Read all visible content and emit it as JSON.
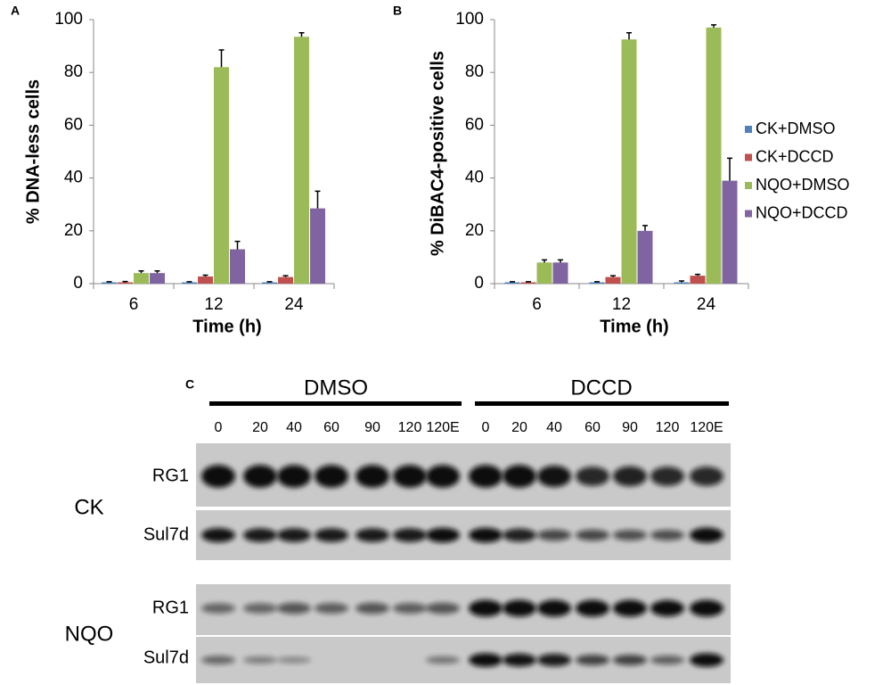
{
  "chart_data": [
    {
      "type": "bar",
      "panel_label": "A",
      "y_label": "% DNA-less cells",
      "x_label": "Time (h)",
      "categories": [
        "6",
        "12",
        "24"
      ],
      "series": [
        {
          "color": "#4f81bd",
          "values": [
            0.5,
            0.5,
            0.5
          ],
          "errors": [
            0.2,
            0.2,
            0.2
          ]
        },
        {
          "color": "#c0504d",
          "values": [
            0.5,
            2.7,
            2.5
          ],
          "errors": [
            0.3,
            0.5,
            0.5
          ]
        },
        {
          "color": "#9bbb59",
          "values": [
            4,
            82,
            93.5
          ],
          "errors": [
            0.8,
            6.5,
            1.5
          ]
        },
        {
          "color": "#8064a2",
          "values": [
            4,
            13,
            28.5
          ],
          "errors": [
            0.8,
            3,
            6.5
          ]
        }
      ],
      "ylim": [
        0,
        100
      ],
      "yticks": [
        0,
        20,
        40,
        60,
        80,
        100
      ]
    },
    {
      "type": "bar",
      "panel_label": "B",
      "y_label": "% DiBAC4-positive cells",
      "x_label": "Time (h)",
      "categories": [
        "6",
        "12",
        "24"
      ],
      "series": [
        {
          "name": "CK+DMSO",
          "color": "#4f81bd",
          "values": [
            0.5,
            0.5,
            0.5
          ],
          "errors": [
            0.2,
            0.2,
            0.5
          ]
        },
        {
          "name": "CK+DCCD",
          "color": "#c0504d",
          "values": [
            0.5,
            2.5,
            3
          ],
          "errors": [
            0.2,
            0.5,
            0.5
          ]
        },
        {
          "name": "NQO+DMSO",
          "color": "#9bbb59",
          "values": [
            8,
            92.5,
            97
          ],
          "errors": [
            1,
            2.5,
            1
          ]
        },
        {
          "name": "NQO+DCCD",
          "color": "#8064a2",
          "values": [
            8,
            20,
            39
          ],
          "errors": [
            1,
            2,
            8.5
          ]
        }
      ],
      "ylim": [
        0,
        100
      ],
      "yticks": [
        0,
        20,
        40,
        60,
        80,
        100
      ],
      "legend": "right"
    }
  ],
  "blot": {
    "panel_label": "C",
    "groups": [
      "DMSO",
      "DCCD"
    ],
    "lanes": [
      "0",
      "20",
      "40",
      "60",
      "90",
      "120",
      "120E",
      "0",
      "20",
      "40",
      "60",
      "90",
      "120",
      "120E"
    ],
    "rows": [
      {
        "treatment": "CK",
        "proteins": [
          "RG1",
          "Sul7d"
        ]
      },
      {
        "treatment": "NQO",
        "proteins": [
          "RG1",
          "Sul7d"
        ]
      }
    ]
  }
}
